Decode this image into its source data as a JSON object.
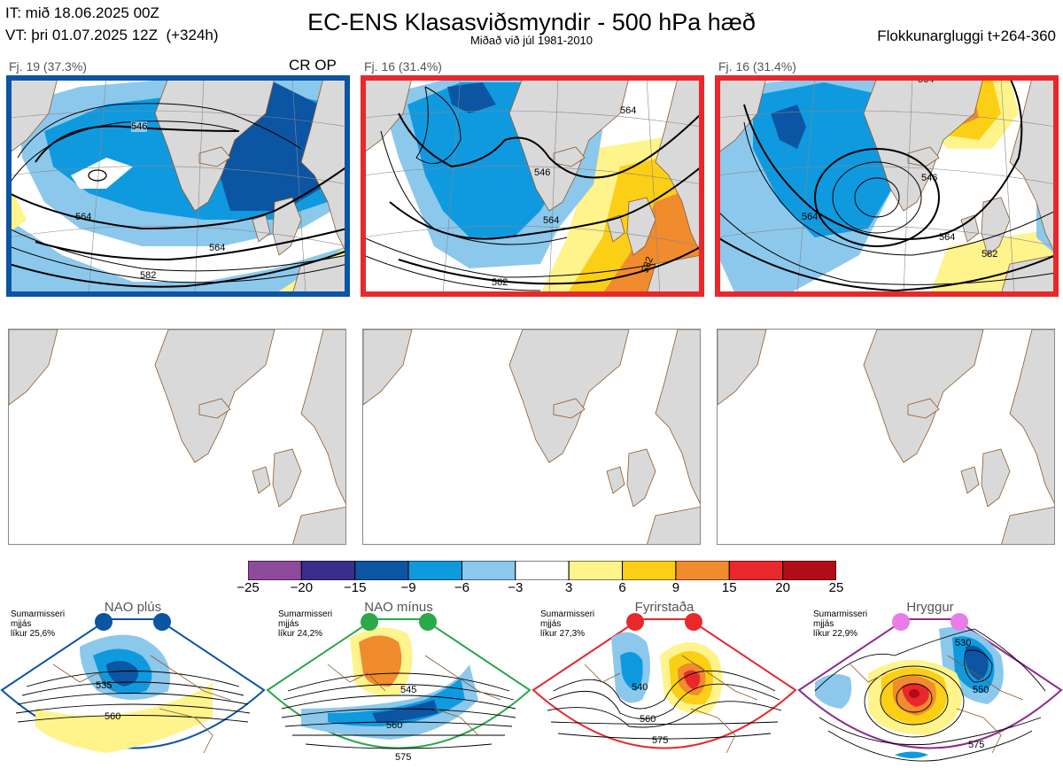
{
  "header": {
    "it": "IT: mið 18.06.2025 00Z",
    "vt": "VT: þri 01.07.2025 12Z  (+324h)",
    "title": "EC-ENS Klasasviðsmyndir - 500 hPa hæð",
    "subtitle": "Miðað við júl 1981-2010",
    "window": "Flokkunargluggi t+264-360"
  },
  "colors": {
    "frame_blue": "#0b55a3",
    "frame_red": "#e8282b",
    "land": "#d9d9d9",
    "coast": "#8b5a2b",
    "nao_plus": "#0b55a3",
    "nao_minus": "#2aa84a",
    "blocking": "#e8282b",
    "ridge": "#e97de8"
  },
  "clusters": [
    {
      "label": "Fj. 19 (37.3%)",
      "tag": "CR OP",
      "contours": [
        "546",
        "564",
        "564",
        "582"
      ]
    },
    {
      "label": "Fj. 16 (31.4%)",
      "tag": "",
      "contours": [
        "546",
        "564",
        "564",
        "582",
        "582"
      ]
    },
    {
      "label": "Fj. 16 (31.4%)",
      "tag": "",
      "contours": [
        "546",
        "564",
        "564",
        "582",
        "564"
      ]
    }
  ],
  "chart_data": {
    "type": "heatmap",
    "title": "EC-ENS Klasasviðsmyndir - 500 hPa hæð",
    "colorbar": {
      "ticks": [
        "−25",
        "−20",
        "−15",
        "−9",
        "−6",
        "−3",
        "3",
        "6",
        "9",
        "15",
        "20",
        "25"
      ],
      "colors": [
        "#8e4a9b",
        "#3b2d8c",
        "#0b55a3",
        "#0f9ae0",
        "#8cc8ec",
        "#ffffff",
        "#fff38c",
        "#fbcf16",
        "#f08b2e",
        "#e8282b",
        "#b20c16"
      ]
    },
    "clusters": [
      {
        "cluster": 1,
        "members": 19,
        "percent": 37.3,
        "operational": true
      },
      {
        "cluster": 2,
        "members": 16,
        "percent": 31.4
      },
      {
        "cluster": 3,
        "members": 16,
        "percent": 31.4
      }
    ]
  },
  "regimes": [
    {
      "name": "NAO plús",
      "info": "Sumarmisseri\nmjjás\nlíkur 25,6%",
      "contours": [
        "535",
        "560"
      ]
    },
    {
      "name": "NAO mínus",
      "info": "Sumarmisseri\nmjjás\nlíkur 24,2%",
      "contours": [
        "545",
        "560",
        "575"
      ]
    },
    {
      "name": "Fyrirstaða",
      "info": "Sumarmisseri\nmjjás\nlíkur 27,3%",
      "contours": [
        "540",
        "560",
        "575"
      ]
    },
    {
      "name": "Hryggur",
      "info": "Sumarmisseri\nmjjás\nlíkur 22,9%",
      "contours": [
        "530",
        "550",
        "575"
      ]
    }
  ]
}
